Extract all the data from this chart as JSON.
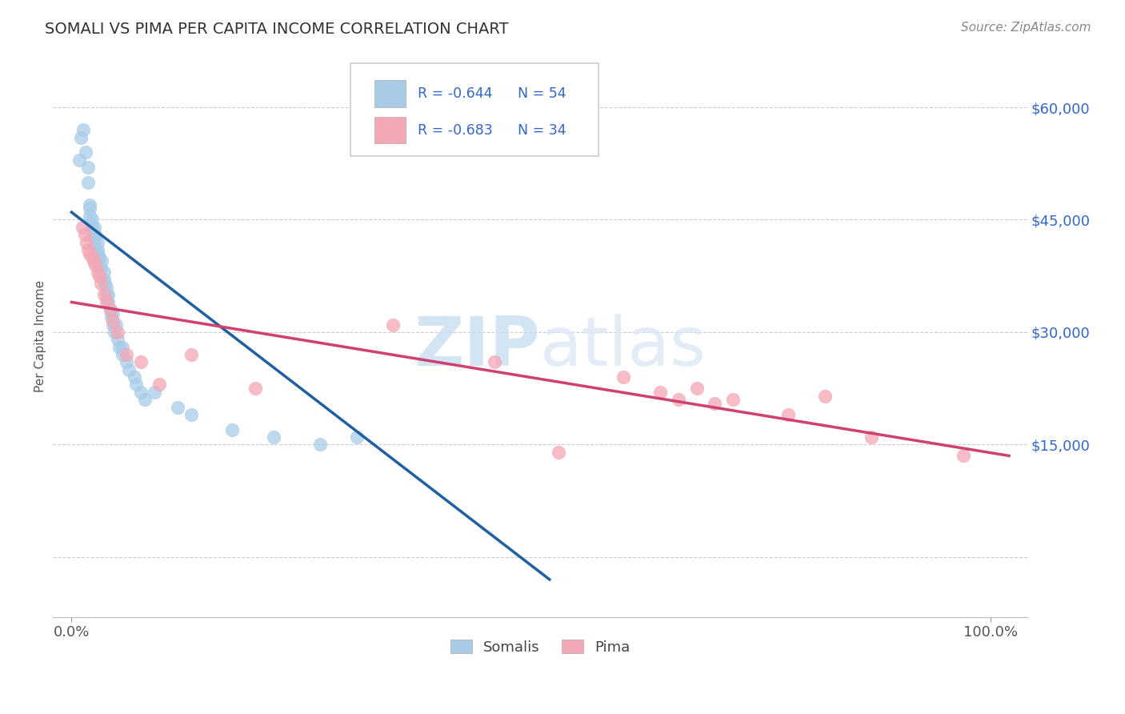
{
  "title": "SOMALI VS PIMA PER CAPITA INCOME CORRELATION CHART",
  "source_text": "Source: ZipAtlas.com",
  "ylabel": "Per Capita Income",
  "yticks": [
    0,
    15000,
    30000,
    45000,
    60000
  ],
  "ytick_labels": [
    "",
    "$15,000",
    "$30,000",
    "$45,000",
    "$60,000"
  ],
  "ylim": [
    -8000,
    67000
  ],
  "xlim": [
    -0.02,
    1.04
  ],
  "legend_blue_r": "R = -0.644",
  "legend_blue_n": "N = 54",
  "legend_pink_r": "R = -0.683",
  "legend_pink_n": "N = 34",
  "legend_label_blue": "Somalis",
  "legend_label_pink": "Pima",
  "blue_color": "#a8cce8",
  "pink_color": "#f4a7b5",
  "trendline_blue_color": "#2060a0",
  "trendline_pink_color": "#d04070",
  "r_color": "#3366cc",
  "watermark_zip": "ZIP",
  "watermark_atlas": "atlas",
  "background_color": "#ffffff",
  "grid_color": "#cccccc",
  "somali_x": [
    0.01,
    0.013,
    0.008,
    0.015,
    0.018,
    0.018,
    0.02,
    0.02,
    0.02,
    0.022,
    0.022,
    0.022,
    0.024,
    0.025,
    0.025,
    0.026,
    0.026,
    0.028,
    0.028,
    0.028,
    0.03,
    0.03,
    0.032,
    0.033,
    0.035,
    0.035,
    0.036,
    0.038,
    0.038,
    0.04,
    0.04,
    0.042,
    0.043,
    0.045,
    0.045,
    0.047,
    0.048,
    0.05,
    0.052,
    0.055,
    0.055,
    0.06,
    0.062,
    0.068,
    0.07,
    0.075,
    0.08,
    0.09,
    0.115,
    0.13,
    0.175,
    0.22,
    0.27,
    0.31
  ],
  "somali_y": [
    56000,
    57000,
    53000,
    54000,
    50000,
    52000,
    47000,
    45500,
    46500,
    44000,
    43500,
    45000,
    43000,
    44000,
    42500,
    41500,
    43000,
    41000,
    42000,
    40500,
    39000,
    40000,
    38500,
    39500,
    37000,
    38000,
    36500,
    35000,
    36000,
    34000,
    35000,
    33000,
    32000,
    31000,
    32500,
    30000,
    31000,
    29000,
    28000,
    27000,
    28000,
    26000,
    25000,
    24000,
    23000,
    22000,
    21000,
    22000,
    20000,
    19000,
    17000,
    16000,
    15000,
    16000
  ],
  "pima_x": [
    0.012,
    0.014,
    0.016,
    0.018,
    0.02,
    0.022,
    0.024,
    0.026,
    0.028,
    0.03,
    0.032,
    0.035,
    0.038,
    0.042,
    0.045,
    0.05,
    0.06,
    0.075,
    0.095,
    0.13,
    0.2,
    0.35,
    0.46,
    0.53,
    0.6,
    0.64,
    0.66,
    0.68,
    0.7,
    0.72,
    0.78,
    0.82,
    0.87,
    0.97
  ],
  "pima_y": [
    44000,
    43000,
    42000,
    41000,
    40500,
    40000,
    39500,
    39000,
    38000,
    37500,
    36500,
    35000,
    34000,
    33000,
    31500,
    30000,
    27000,
    26000,
    23000,
    27000,
    22500,
    31000,
    26000,
    14000,
    24000,
    22000,
    21000,
    22500,
    20500,
    21000,
    19000,
    21500,
    16000,
    13500
  ],
  "trendline_blue_x0": 0.0,
  "trendline_blue_y0": 46000,
  "trendline_blue_x1": 0.52,
  "trendline_blue_y1": -3000,
  "trendline_pink_x0": 0.0,
  "trendline_pink_y0": 34000,
  "trendline_pink_x1": 1.02,
  "trendline_pink_y1": 13500
}
